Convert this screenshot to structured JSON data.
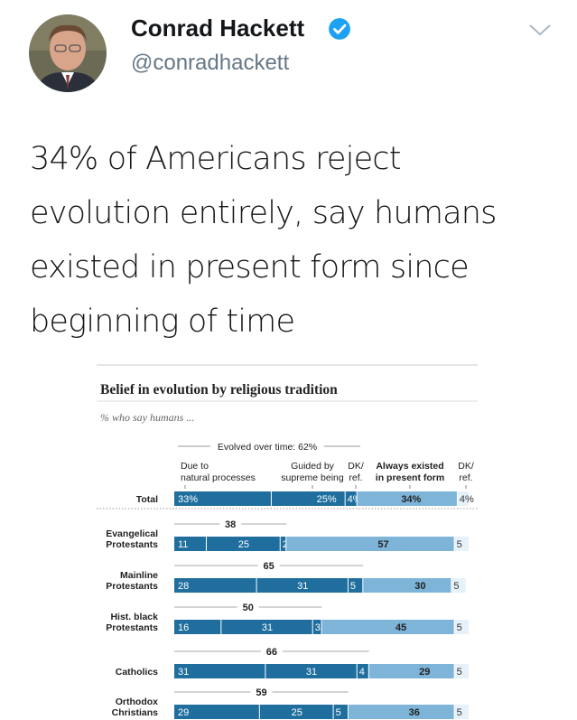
{
  "tweet": {
    "author_name": "Conrad Hackett",
    "handle": "@conradhackett",
    "text_lines": [
      "34% of Americans reject",
      "evolution entirely, say humans",
      "existed in present form since",
      "beginning of time"
    ]
  },
  "icons": {
    "verified": "verified-badge-icon",
    "more": "chevron-down-icon",
    "avatar": "profile-photo"
  },
  "colors": {
    "dark_blue": "#1f6e9e",
    "light_blue": "#7db4d8",
    "verified": "#1da1f2"
  },
  "chart_data": {
    "type": "bar",
    "stacked": true,
    "orientation": "horizontal",
    "title": "Belief in evolution by religious tradition",
    "subtitle": "% who say humans ...",
    "group_header": "Evolved over time: 62%",
    "column_headers": [
      "Due to natural processes",
      "Guided by supreme being",
      "DK/ ref.",
      "Always existed in present form",
      "DK/ ref."
    ],
    "categories": [
      "Total",
      "Evangelical Protestants",
      "Mainline Protestants",
      "Hist. black Protestants",
      "Catholics",
      "Orthodox Christians"
    ],
    "evolved_totals": [
      "",
      "38",
      "65",
      "50",
      "66",
      "59"
    ],
    "series": [
      {
        "name": "Due to natural processes",
        "values": [
          33,
          11,
          28,
          16,
          31,
          29
        ],
        "labels": [
          "33%",
          "11",
          "28",
          "16",
          "31",
          "29"
        ]
      },
      {
        "name": "Guided by supreme being",
        "values": [
          25,
          25,
          31,
          31,
          31,
          25
        ],
        "labels": [
          "25%",
          "25",
          "31",
          "31",
          "31",
          "25"
        ]
      },
      {
        "name": "DK/ ref.",
        "values": [
          4,
          2,
          5,
          3,
          4,
          5
        ],
        "labels": [
          "4%",
          "2",
          "5",
          "3",
          "4",
          "5"
        ]
      },
      {
        "name": "Always existed in present form",
        "values": [
          34,
          57,
          30,
          45,
          29,
          36
        ],
        "labels": [
          "34%",
          "57",
          "30",
          "45",
          "29",
          "36"
        ]
      },
      {
        "name": "DK/ ref.",
        "values": [
          4,
          5,
          5,
          5,
          5,
          5
        ],
        "labels": [
          "4%",
          "5",
          "5",
          "5",
          "5",
          "5"
        ]
      }
    ]
  }
}
